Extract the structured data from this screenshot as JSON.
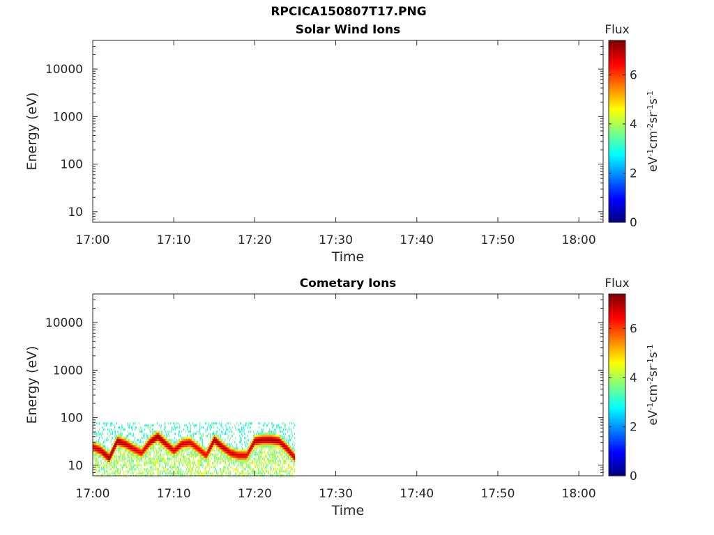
{
  "figure": {
    "title": "RPCICA150807T17.PNG"
  },
  "colors": {
    "axis": "#262626",
    "background": "#ffffff",
    "colormap": "jet"
  },
  "chart_data": [
    {
      "type": "heatmap",
      "title": "Solar Wind Ions",
      "xlabel": "Time",
      "ylabel": "Energy (eV)",
      "x_ticks": [
        "17:00",
        "17:10",
        "17:20",
        "17:30",
        "17:40",
        "17:50",
        "18:00"
      ],
      "xlim": [
        "17:00",
        "18:03"
      ],
      "y_ticks": [
        "10",
        "100",
        "1000",
        "10000"
      ],
      "ylim": [
        6,
        40000
      ],
      "y_scale": "log",
      "grid": false,
      "colorbar": {
        "label_title": "Flux",
        "unit": "eV-1cm-2sr-1s-1",
        "ticks": [
          "0",
          "2",
          "4",
          "6"
        ],
        "range": [
          0,
          7.4
        ],
        "colormap": "jet"
      },
      "data_extent": null,
      "spectra": []
    },
    {
      "type": "heatmap",
      "title": "Cometary Ions",
      "xlabel": "Time",
      "ylabel": "Energy (eV)",
      "x_ticks": [
        "17:00",
        "17:10",
        "17:20",
        "17:30",
        "17:40",
        "17:50",
        "18:00"
      ],
      "xlim": [
        "17:00",
        "18:03"
      ],
      "y_ticks": [
        "10",
        "100",
        "1000",
        "10000"
      ],
      "ylim": [
        6,
        40000
      ],
      "y_scale": "log",
      "grid": false,
      "colorbar": {
        "label_title": "Flux",
        "unit": "eV-1cm-2sr-1s-1",
        "ticks": [
          "0",
          "2",
          "4",
          "6"
        ],
        "range": [
          0,
          7.4
        ],
        "colormap": "jet"
      },
      "data_extent": {
        "time_start": "17:00",
        "time_end": "17:25",
        "energy_min": 6,
        "energy_max": 80
      },
      "spectra": [
        {
          "time": "17:00",
          "peak_energy": 24,
          "peak_flux": 6.8
        },
        {
          "time": "17:01",
          "peak_energy": 20,
          "peak_flux": 7.0
        },
        {
          "time": "17:02",
          "peak_energy": 14,
          "peak_flux": 7.2
        },
        {
          "time": "17:03",
          "peak_energy": 32,
          "peak_flux": 7.3
        },
        {
          "time": "17:04",
          "peak_energy": 28,
          "peak_flux": 7.0
        },
        {
          "time": "17:05",
          "peak_energy": 22,
          "peak_flux": 6.8
        },
        {
          "time": "17:06",
          "peak_energy": 18,
          "peak_flux": 6.6
        },
        {
          "time": "17:07",
          "peak_energy": 30,
          "peak_flux": 7.0
        },
        {
          "time": "17:08",
          "peak_energy": 40,
          "peak_flux": 7.2
        },
        {
          "time": "17:09",
          "peak_energy": 28,
          "peak_flux": 7.0
        },
        {
          "time": "17:10",
          "peak_energy": 20,
          "peak_flux": 6.8
        },
        {
          "time": "17:11",
          "peak_energy": 28,
          "peak_flux": 6.9
        },
        {
          "time": "17:12",
          "peak_energy": 30,
          "peak_flux": 6.8
        },
        {
          "time": "17:13",
          "peak_energy": 22,
          "peak_flux": 6.6
        },
        {
          "time": "17:14",
          "peak_energy": 16,
          "peak_flux": 6.6
        },
        {
          "time": "17:15",
          "peak_energy": 34,
          "peak_flux": 7.3
        },
        {
          "time": "17:16",
          "peak_energy": 24,
          "peak_flux": 7.0
        },
        {
          "time": "17:17",
          "peak_energy": 18,
          "peak_flux": 6.8
        },
        {
          "time": "17:18",
          "peak_energy": 16,
          "peak_flux": 6.7
        },
        {
          "time": "17:19",
          "peak_energy": 16,
          "peak_flux": 6.6
        },
        {
          "time": "17:20",
          "peak_energy": 32,
          "peak_flux": 7.2
        },
        {
          "time": "17:21",
          "peak_energy": 34,
          "peak_flux": 7.1
        },
        {
          "time": "17:22",
          "peak_energy": 34,
          "peak_flux": 7.2
        },
        {
          "time": "17:23",
          "peak_energy": 32,
          "peak_flux": 7.1
        },
        {
          "time": "17:24",
          "peak_energy": 22,
          "peak_flux": 7.0
        },
        {
          "time": "17:25",
          "peak_energy": 14,
          "peak_flux": 6.8
        }
      ]
    }
  ]
}
